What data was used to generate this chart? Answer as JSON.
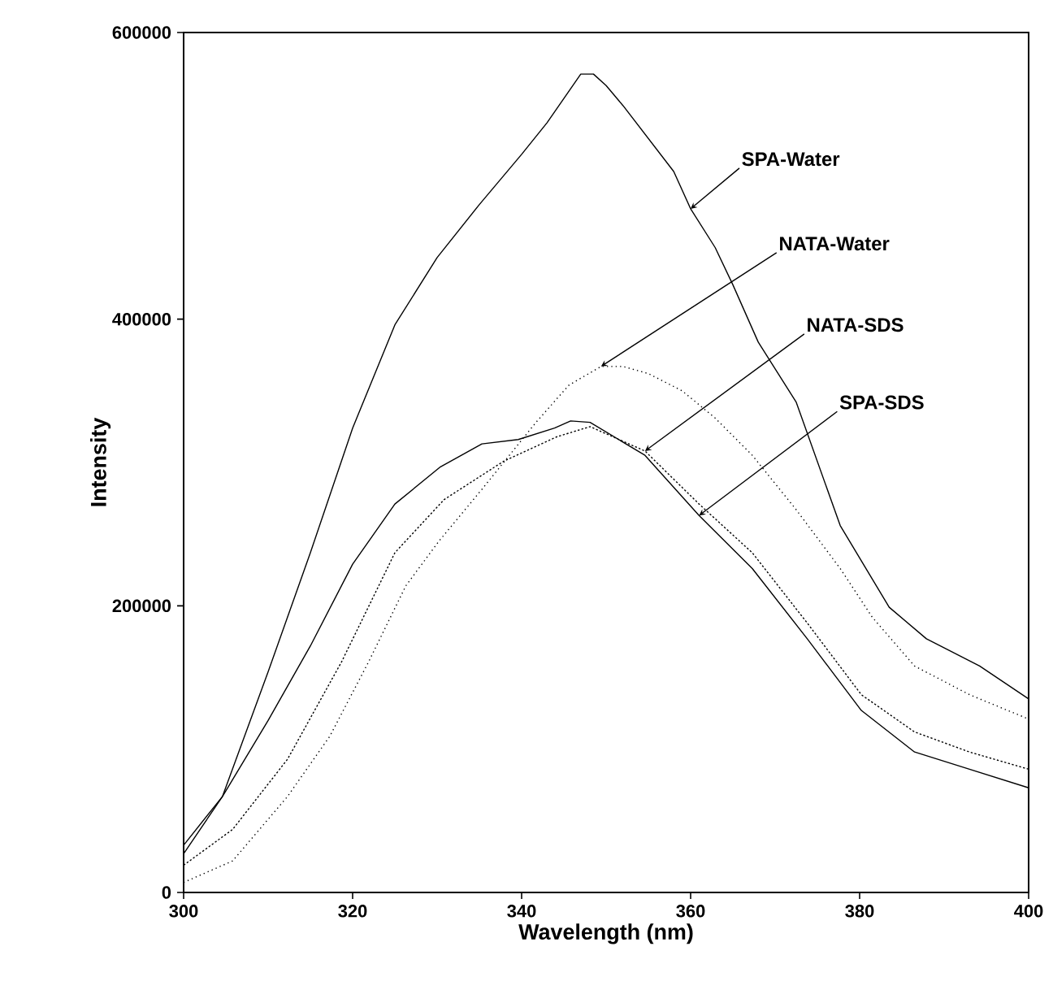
{
  "chart_data": {
    "type": "line",
    "xlabel": "Wavelength (nm)",
    "ylabel": "Intensity",
    "xlim": [
      300,
      400
    ],
    "ylim": [
      0,
      600000
    ],
    "xticks": [
      300,
      320,
      340,
      360,
      380,
      400
    ],
    "yticks": [
      0,
      200000,
      400000,
      600000
    ],
    "grid": false,
    "marker": "none",
    "series": [
      {
        "color": "#000000",
        "line_style": "solid",
        "x": [
          300,
          304.6,
          310,
          315,
          320,
          325,
          330,
          335,
          340,
          343,
          345,
          347,
          348.5,
          350,
          352,
          355,
          358,
          360,
          362.9,
          365,
          368,
          372.5,
          377.7,
          383.5,
          387.9,
          394.2,
          400
        ],
        "values": [
          33000,
          67000,
          154000,
          237000,
          324000,
          396000,
          443000,
          480000,
          515000,
          537000,
          554000,
          571000,
          571000,
          563000,
          549000,
          526000,
          503000,
          477000,
          450000,
          424000,
          384000,
          342000,
          256000,
          199000,
          177000,
          158000,
          135000
        ]
      },
      {
        "color": "#000000",
        "line_style": "dotted",
        "x": [
          300,
          305.8,
          312.3,
          317.3,
          321.9,
          326.3,
          330.2,
          335.4,
          341.7,
          345.6,
          349.4,
          352,
          355,
          359,
          362.9,
          367.3,
          372.5,
          377.7,
          381.5,
          386.5,
          393,
          400
        ],
        "values": [
          7000,
          22000,
          67000,
          109000,
          161000,
          214000,
          245000,
          282000,
          328000,
          354000,
          367000,
          367000,
          362000,
          350000,
          331000,
          305000,
          267000,
          226000,
          192000,
          158000,
          138000,
          121000
        ]
      },
      {
        "color": "#000000",
        "line_style": "dashed",
        "x": [
          300,
          305.8,
          312.3,
          318.7,
          325,
          330.8,
          337.9,
          344.2,
          348.1,
          354.6,
          361,
          367.3,
          373.8,
          380.2,
          386.5,
          393,
          400
        ],
        "values": [
          19000,
          44000,
          93000,
          161000,
          237000,
          274000,
          301000,
          318000,
          325000,
          308000,
          271000,
          237000,
          188000,
          138000,
          112000,
          98000,
          86000
        ]
      },
      {
        "color": "#000000",
        "line_style": "solid",
        "x": [
          300,
          304.6,
          310,
          315,
          320,
          325,
          330.4,
          335.3,
          339.6,
          343.9,
          345.8,
          348.1,
          354.6,
          361,
          367.3,
          373.8,
          380.2,
          386.5,
          393,
          400
        ],
        "values": [
          27000,
          67000,
          120000,
          172000,
          229000,
          271000,
          297000,
          313000,
          316000,
          324000,
          329000,
          328000,
          305000,
          263000,
          226000,
          177000,
          127000,
          98000,
          86000,
          73000
        ]
      }
    ],
    "annotations": [
      {
        "text": "SPA-Water",
        "x": 360,
        "y": 477000
      },
      {
        "text": "NATA-Water",
        "x": 349.4,
        "y": 367000
      },
      {
        "text": "NATA-SDS",
        "x": 354.6,
        "y": 308000
      },
      {
        "text": "SPA-SDS",
        "x": 361,
        "y": 263000
      }
    ]
  }
}
